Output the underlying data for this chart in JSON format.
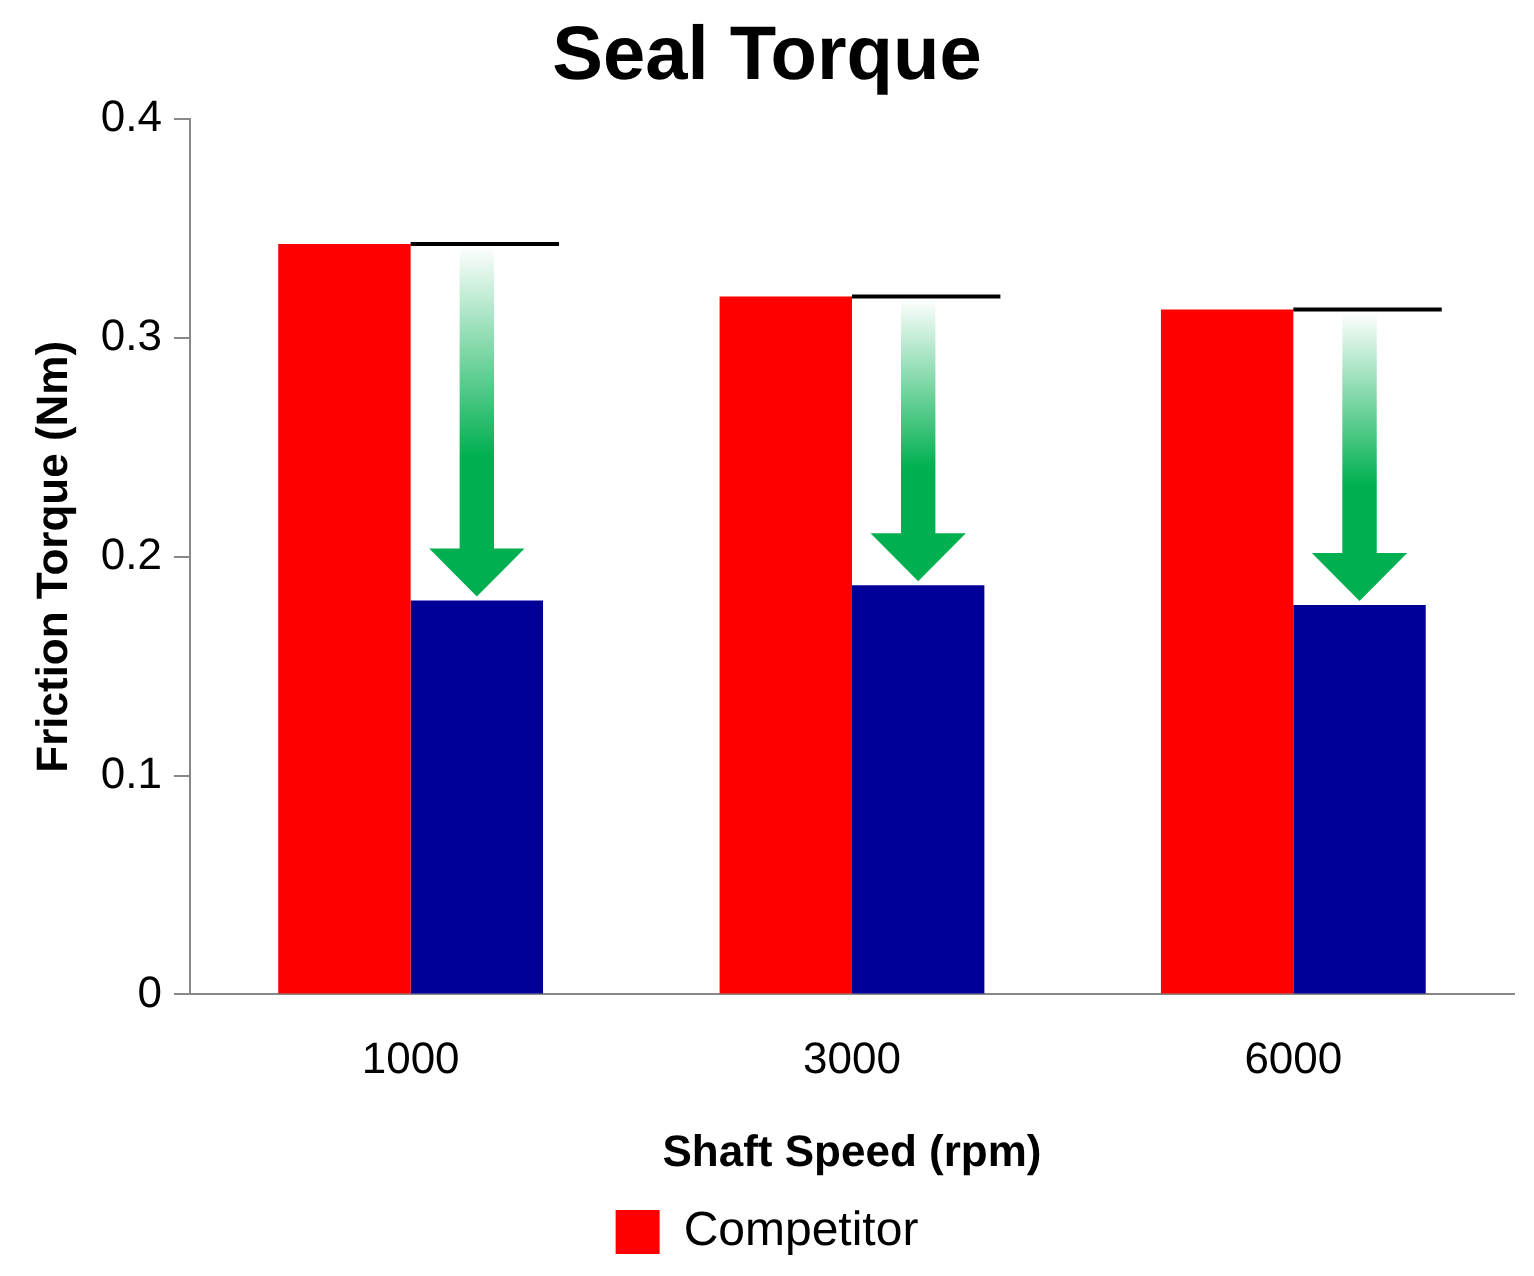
{
  "chart_data": {
    "type": "bar",
    "title": "Seal Torque",
    "xlabel": "Shaft Speed (rpm)",
    "ylabel": "Friction Torque (Nm)",
    "categories": [
      "1000",
      "3000",
      "6000"
    ],
    "series": [
      {
        "name": "Competitor",
        "color": "#ff0000",
        "values": [
          0.343,
          0.319,
          0.313
        ]
      },
      {
        "color": "#000099",
        "values": [
          0.18,
          0.187,
          0.178
        ]
      }
    ],
    "ylim": [
      0,
      0.4
    ],
    "yticks": [
      0,
      0.1,
      0.2,
      0.3,
      0.4
    ],
    "grid": false,
    "legend": "bottom"
  }
}
